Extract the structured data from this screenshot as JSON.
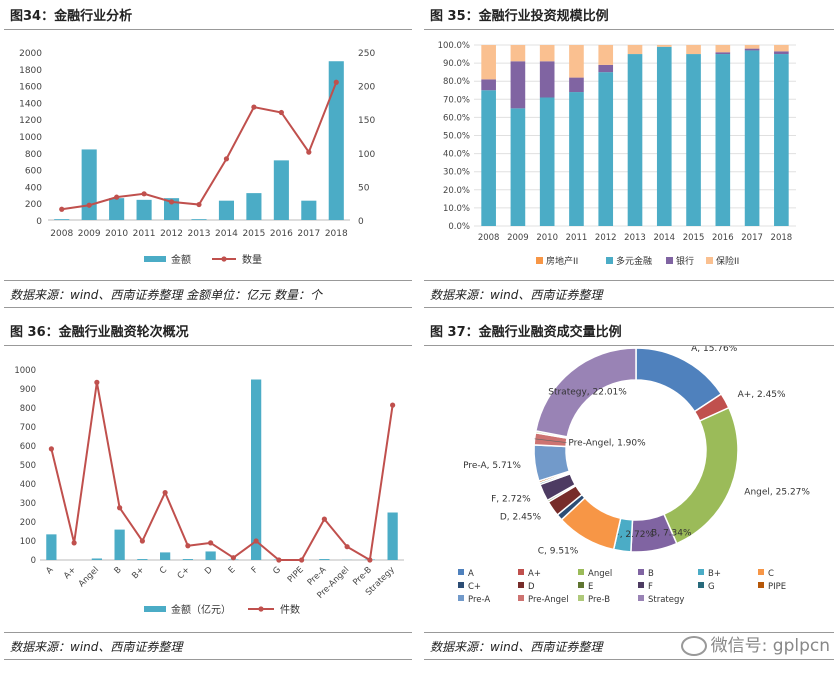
{
  "panels": {
    "p34": {
      "title": "图34：金融行业分析",
      "source": "数据来源：wind、西南证券整理 金额单位：亿元 数量：个"
    },
    "p35": {
      "title": "图 35：金融行业投资规模比例",
      "source": "数据来源：wind、西南证券整理"
    },
    "p36": {
      "title": "图 36：金融行业融资轮次概况",
      "source": "数据来源：wind、西南证券整理"
    },
    "p37": {
      "title": "图 37：金融行业融资成交量比例",
      "source": "数据来源：wind、西南证券整理"
    }
  },
  "watermark": "微信号: gplpcn",
  "chart_data": [
    {
      "id": "fig34",
      "type": "bar+line",
      "categories": [
        "2008",
        "2009",
        "2010",
        "2011",
        "2012",
        "2013",
        "2014",
        "2015",
        "2016",
        "2017",
        "2018"
      ],
      "series": [
        {
          "name": "金额",
          "type": "bar",
          "axis": "left",
          "values": [
            10,
            840,
            260,
            240,
            260,
            10,
            230,
            320,
            710,
            230,
            1890
          ]
        },
        {
          "name": "数量",
          "type": "line",
          "axis": "right",
          "values": [
            16,
            22,
            34,
            39,
            27,
            23,
            91,
            168,
            160,
            101,
            205
          ]
        }
      ],
      "ylim_left": [
        0,
        2000
      ],
      "yticks_left": [
        0,
        200,
        400,
        600,
        800,
        1000,
        1200,
        1400,
        1600,
        1800,
        2000
      ],
      "ylim_right": [
        0,
        250
      ],
      "yticks_right": [
        0,
        50,
        100,
        150,
        200,
        250
      ],
      "colors": {
        "bar": "#4bacc6",
        "line": "#c0504d"
      }
    },
    {
      "id": "fig35",
      "type": "stacked-bar-100",
      "categories": [
        "2008",
        "2009",
        "2010",
        "2011",
        "2012",
        "2013",
        "2014",
        "2015",
        "2016",
        "2017",
        "2018"
      ],
      "series": [
        {
          "name": "房地产II",
          "color": "#f79646",
          "values": [
            0,
            0,
            0,
            0,
            0,
            0,
            0,
            0,
            0,
            0,
            0
          ]
        },
        {
          "name": "多元金融",
          "color": "#4bacc6",
          "values": [
            75,
            65,
            71,
            74,
            85,
            95,
            99,
            95,
            95,
            97,
            95
          ]
        },
        {
          "name": "银行",
          "color": "#8064a2",
          "values": [
            6,
            26,
            20,
            8,
            4,
            0,
            0,
            0,
            1,
            1,
            1.5
          ]
        },
        {
          "name": "保险II",
          "color": "#fac090",
          "values": [
            19,
            9,
            9,
            18,
            11,
            5,
            1,
            5,
            4,
            2,
            3.5
          ]
        }
      ],
      "ylim": [
        0,
        100
      ],
      "yticks": [
        "0.0%",
        "10.0%",
        "20.0%",
        "30.0%",
        "40.0%",
        "50.0%",
        "60.0%",
        "70.0%",
        "80.0%",
        "90.0%",
        "100.0%"
      ]
    },
    {
      "id": "fig36",
      "type": "bar+line",
      "categories": [
        "A",
        "A+",
        "Angel",
        "B",
        "B+",
        "C",
        "C+",
        "D",
        "E",
        "F",
        "G",
        "PIPE",
        "Pre-A",
        "Pre-Angel",
        "Pre-B",
        "Strategy"
      ],
      "series": [
        {
          "name": "金额（亿元）",
          "type": "bar",
          "values": [
            135,
            0,
            8,
            160,
            5,
            40,
            5,
            45,
            3,
            950,
            3,
            1,
            5,
            1,
            3,
            250
          ]
        },
        {
          "name": "件数",
          "type": "line",
          "values": [
            585,
            90,
            935,
            275,
            100,
            355,
            75,
            90,
            12,
            100,
            0,
            0,
            215,
            70,
            0,
            815
          ]
        }
      ],
      "ylim": [
        0,
        1000
      ],
      "yticks": [
        0,
        100,
        200,
        300,
        400,
        500,
        600,
        700,
        800,
        900,
        1000
      ],
      "colors": {
        "bar": "#4bacc6",
        "line": "#c0504d"
      }
    },
    {
      "id": "fig37",
      "type": "donut",
      "slices": [
        {
          "name": "A",
          "value": 15.76,
          "label": "A, 15.76%",
          "color": "#4f81bd"
        },
        {
          "name": "A+",
          "value": 2.45,
          "label": "A+, 2.45%",
          "color": "#c0504d"
        },
        {
          "name": "Angel",
          "value": 25.27,
          "label": "Angel, 25.27%",
          "color": "#9bbb59"
        },
        {
          "name": "B",
          "value": 7.34,
          "label": "B, 7.34%",
          "color": "#8064a2"
        },
        {
          "name": "B+",
          "value": 2.72,
          "label": "B+, 2.72%",
          "color": "#4bacc6"
        },
        {
          "name": "C",
          "value": 9.51,
          "label": "C, 9.51%",
          "color": "#f79646"
        },
        {
          "name": "C+",
          "value": 1.0,
          "label": "",
          "color": "#2c4d75"
        },
        {
          "name": "D",
          "value": 2.45,
          "label": "D, 2.45%",
          "color": "#772c2a"
        },
        {
          "name": "E",
          "value": 0.3,
          "label": "",
          "color": "#5f7530"
        },
        {
          "name": "F",
          "value": 2.72,
          "label": "F, 2.72%",
          "color": "#4d3b62"
        },
        {
          "name": "G",
          "value": 0.3,
          "label": "",
          "color": "#276a7c"
        },
        {
          "name": "PIPE",
          "value": 0.3,
          "label": "",
          "color": "#b65708"
        },
        {
          "name": "Pre-A",
          "value": 5.71,
          "label": "Pre-A, 5.71%",
          "color": "#729aca"
        },
        {
          "name": "Pre-Angel",
          "value": 1.9,
          "label": "Pre-Angel, 1.90%",
          "color": "#cd7371"
        },
        {
          "name": "Pre-B",
          "value": 0.3,
          "label": "",
          "color": "#afc97a"
        },
        {
          "name": "Strategy",
          "value": 22.01,
          "label": "Strategy, 22.01%",
          "color": "#9983b5"
        }
      ],
      "legend": [
        "A",
        "A+",
        "Angel",
        "B",
        "B+",
        "C",
        "C+",
        "D",
        "E",
        "F",
        "G",
        "PIPE",
        "Pre-A",
        "Pre-Angel",
        "Pre-B",
        "Strategy"
      ]
    }
  ]
}
